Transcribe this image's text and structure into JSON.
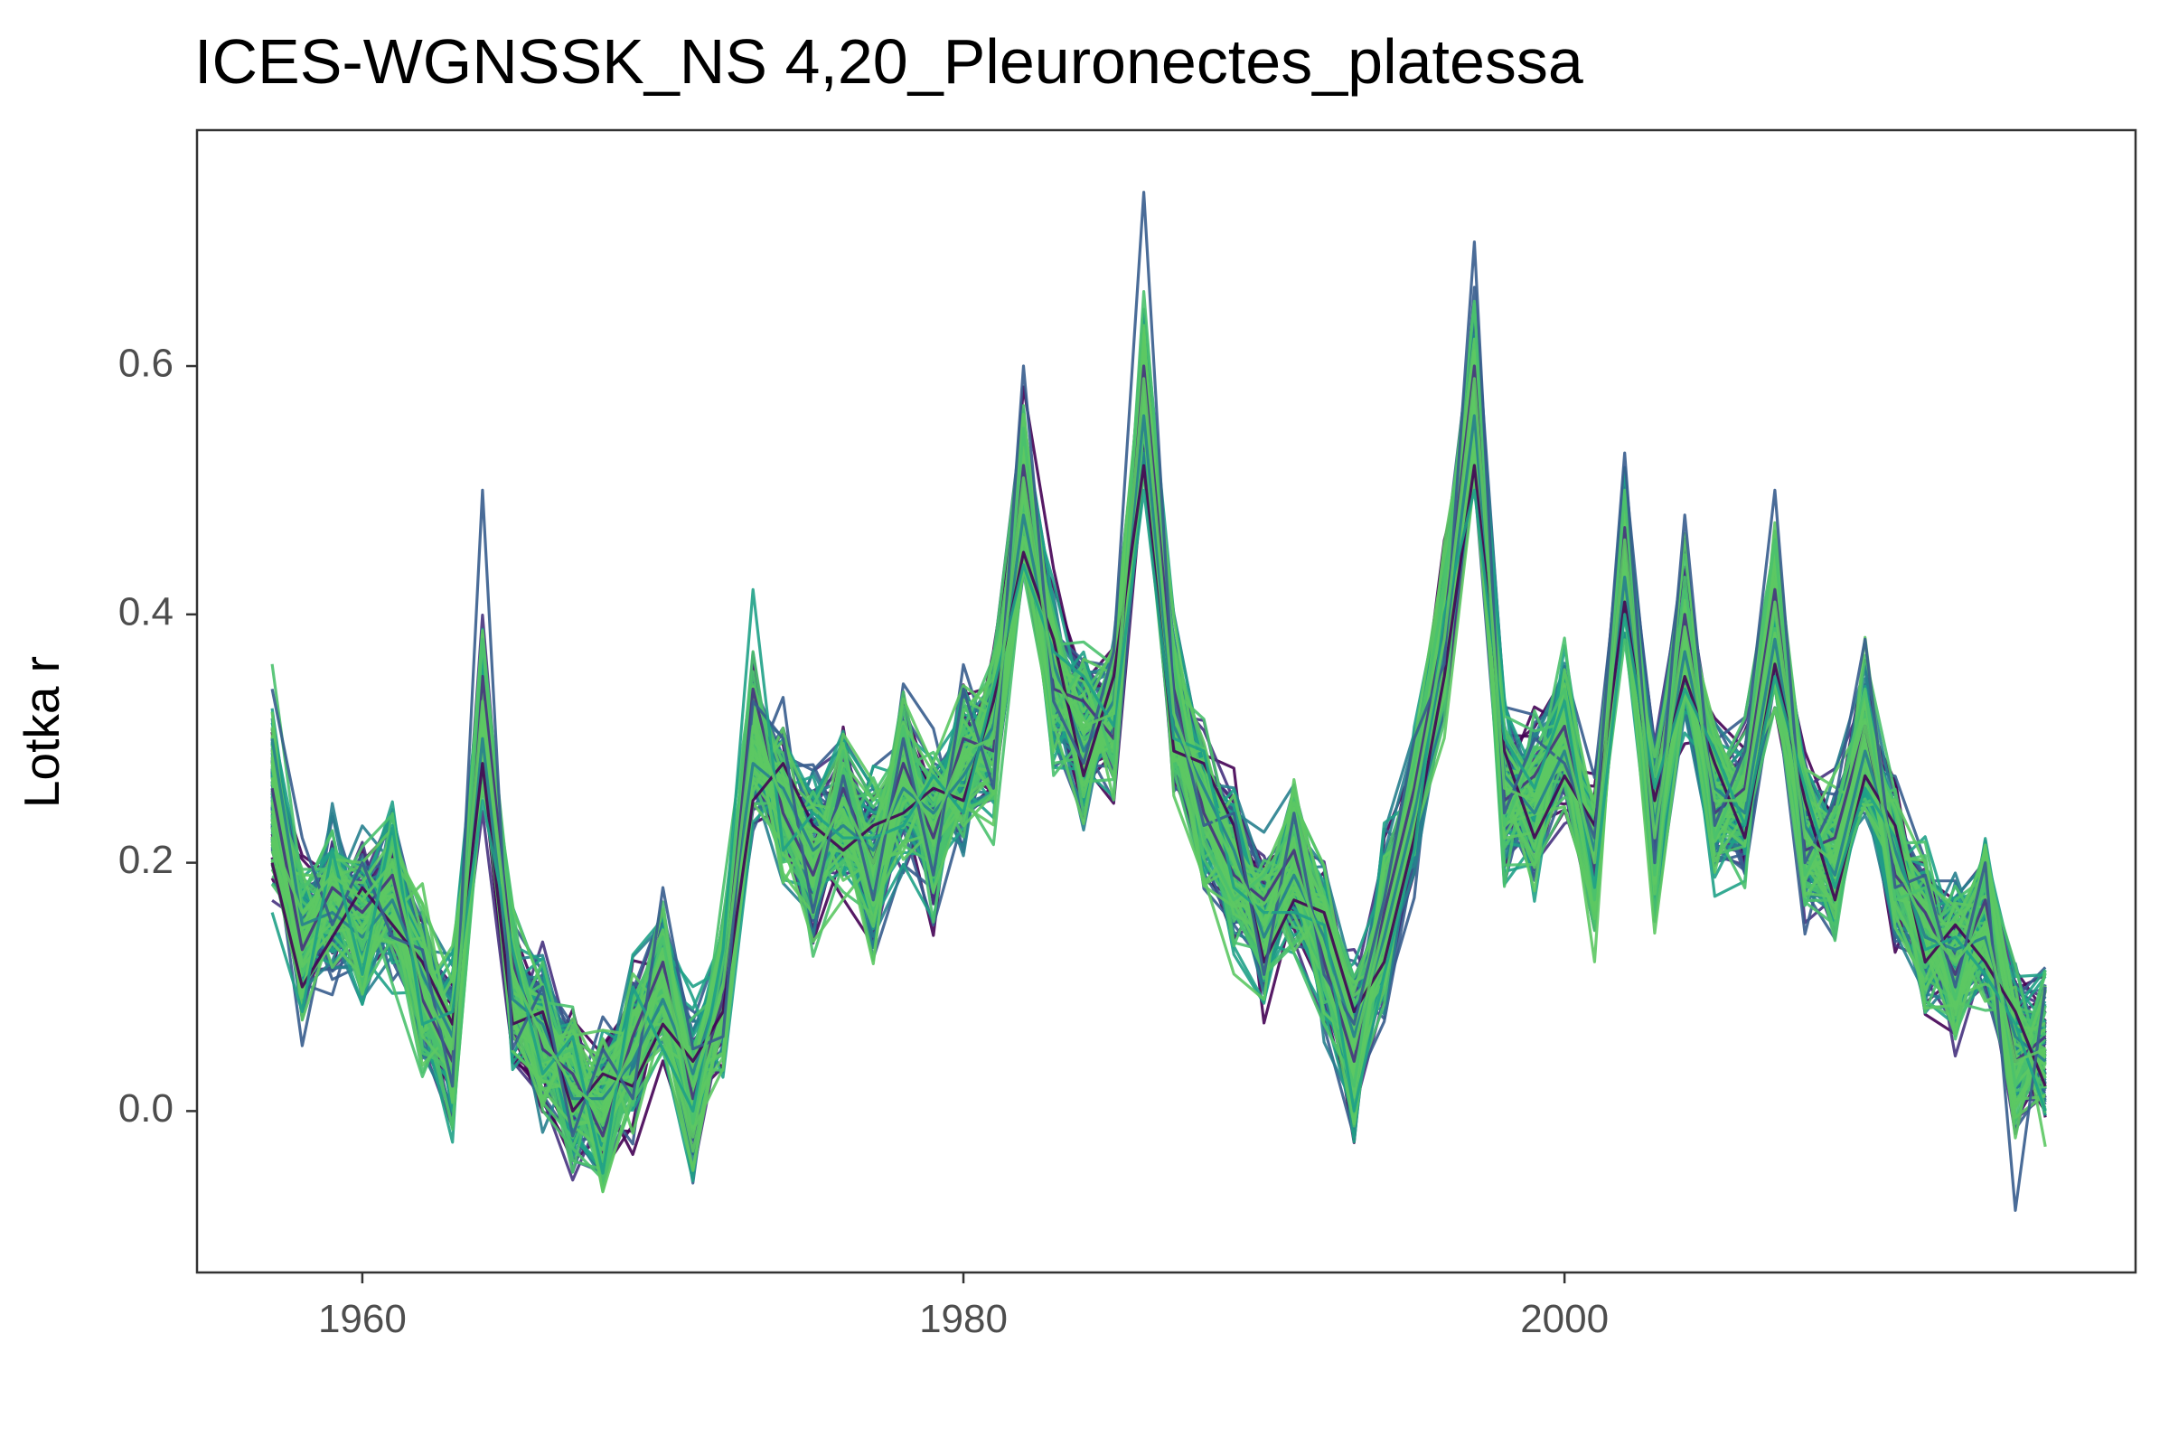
{
  "chart_data": {
    "type": "line",
    "title": "ICES-WGNSSK_NS 4,20_Pleuronectes_platessa",
    "xlabel": "",
    "ylabel": "Lotka r",
    "xlim": [
      1954.5,
      2019
    ],
    "ylim": [
      -0.13,
      0.79
    ],
    "x_ticks": [
      1960,
      1980,
      2000
    ],
    "y_ticks": [
      0.0,
      0.2,
      0.4,
      0.6
    ],
    "x_tick_labels": [
      "1960",
      "1980",
      "2000"
    ],
    "y_tick_labels": [
      "0.0",
      "0.2",
      "0.4",
      "0.6"
    ],
    "grid": false,
    "legend": "none",
    "palette": [
      "#440154",
      "#46327e",
      "#365c8d",
      "#277f8e",
      "#1fa187",
      "#4ac16d",
      "#5cc863"
    ],
    "x": [
      1957,
      1958,
      1959,
      1960,
      1961,
      1962,
      1963,
      1964,
      1965,
      1966,
      1967,
      1968,
      1969,
      1970,
      1971,
      1972,
      1973,
      1974,
      1975,
      1976,
      1977,
      1978,
      1979,
      1980,
      1981,
      1982,
      1983,
      1984,
      1985,
      1986,
      1987,
      1988,
      1989,
      1990,
      1991,
      1992,
      1993,
      1994,
      1995,
      1996,
      1997,
      1998,
      1999,
      2000,
      2001,
      2002,
      2003,
      2004,
      2005,
      2006,
      2007,
      2008,
      2009,
      2010,
      2011,
      2012,
      2013,
      2014,
      2015,
      2016
    ],
    "central": [
      0.25,
      0.14,
      0.17,
      0.15,
      0.18,
      0.1,
      0.05,
      0.32,
      0.1,
      0.06,
      0.02,
      0.0,
      0.05,
      0.1,
      0.02,
      0.1,
      0.3,
      0.25,
      0.2,
      0.24,
      0.2,
      0.27,
      0.23,
      0.28,
      0.3,
      0.5,
      0.35,
      0.3,
      0.32,
      0.58,
      0.32,
      0.25,
      0.2,
      0.15,
      0.2,
      0.13,
      0.05,
      0.15,
      0.25,
      0.38,
      0.58,
      0.26,
      0.25,
      0.3,
      0.2,
      0.45,
      0.22,
      0.38,
      0.25,
      0.25,
      0.4,
      0.22,
      0.2,
      0.3,
      0.2,
      0.15,
      0.12,
      0.15,
      0.05,
      0.05
    ],
    "series": [
      {
        "values": [
          0.26,
          0.13,
          0.18,
          0.16,
          0.19,
          0.09,
          0.04,
          0.35,
          0.12,
          0.05,
          0.03,
          -0.02,
          0.06,
          0.12,
          0.01,
          0.09,
          0.34,
          0.24,
          0.19,
          0.26,
          0.2,
          0.28,
          0.22,
          0.3,
          0.29,
          0.52,
          0.34,
          0.33,
          0.3,
          0.6,
          0.34,
          0.24,
          0.19,
          0.17,
          0.21,
          0.12,
          0.04,
          0.16,
          0.26,
          0.39,
          0.6,
          0.25,
          0.27,
          0.31,
          0.19,
          0.47,
          0.21,
          0.4,
          0.24,
          0.26,
          0.42,
          0.21,
          0.22,
          0.31,
          0.19,
          0.16,
          0.11,
          0.17,
          0.04,
          0.06
        ]
      },
      {
        "values": [
          0.3,
          0.15,
          0.16,
          0.14,
          0.17,
          0.11,
          0.06,
          0.3,
          0.09,
          0.07,
          0.01,
          0.01,
          0.04,
          0.09,
          0.03,
          0.11,
          0.28,
          0.26,
          0.21,
          0.23,
          0.21,
          0.26,
          0.24,
          0.27,
          0.31,
          0.48,
          0.36,
          0.29,
          0.33,
          0.56,
          0.31,
          0.26,
          0.21,
          0.14,
          0.19,
          0.14,
          0.06,
          0.14,
          0.24,
          0.37,
          0.56,
          0.27,
          0.24,
          0.29,
          0.21,
          0.43,
          0.23,
          0.37,
          0.26,
          0.24,
          0.38,
          0.23,
          0.19,
          0.29,
          0.21,
          0.14,
          0.13,
          0.14,
          0.06,
          0.04
        ]
      },
      {
        "values": [
          0.36,
          0.18,
          0.2,
          0.13,
          0.22,
          0.08,
          0.03,
          0.38,
          0.15,
          0.04,
          0.05,
          -0.04,
          0.09,
          0.14,
          -0.01,
          0.12,
          0.37,
          0.22,
          0.17,
          0.29,
          0.18,
          0.31,
          0.2,
          0.33,
          0.27,
          0.55,
          0.32,
          0.36,
          0.28,
          0.66,
          0.36,
          0.22,
          0.17,
          0.19,
          0.23,
          0.1,
          0.02,
          0.18,
          0.28,
          0.42,
          0.65,
          0.23,
          0.29,
          0.34,
          0.17,
          0.5,
          0.19,
          0.43,
          0.22,
          0.28,
          0.46,
          0.19,
          0.24,
          0.34,
          0.17,
          0.18,
          0.09,
          0.19,
          0.02,
          0.08
        ]
      },
      {
        "values": [
          0.2,
          0.1,
          0.14,
          0.18,
          0.15,
          0.12,
          0.07,
          0.28,
          0.07,
          0.08,
          0.0,
          0.03,
          0.02,
          0.07,
          0.04,
          0.08,
          0.25,
          0.28,
          0.23,
          0.21,
          0.23,
          0.24,
          0.26,
          0.25,
          0.33,
          0.45,
          0.38,
          0.27,
          0.35,
          0.52,
          0.29,
          0.28,
          0.23,
          0.12,
          0.17,
          0.16,
          0.08,
          0.12,
          0.22,
          0.35,
          0.52,
          0.29,
          0.22,
          0.27,
          0.23,
          0.41,
          0.25,
          0.35,
          0.28,
          0.22,
          0.36,
          0.25,
          0.17,
          0.27,
          0.23,
          0.12,
          0.15,
          0.12,
          0.08,
          0.02
        ]
      },
      {
        "values": [
          0.34,
          0.22,
          0.15,
          0.2,
          0.14,
          0.13,
          0.02,
          0.5,
          0.05,
          0.1,
          -0.02,
          0.05,
          0.01,
          0.18,
          0.05,
          0.06,
          0.33,
          0.3,
          0.16,
          0.27,
          0.17,
          0.3,
          0.19,
          0.34,
          0.26,
          0.6,
          0.33,
          0.28,
          0.37,
          0.74,
          0.33,
          0.23,
          0.24,
          0.11,
          0.24,
          0.11,
          0.07,
          0.17,
          0.3,
          0.36,
          0.7,
          0.24,
          0.3,
          0.28,
          0.22,
          0.53,
          0.2,
          0.48,
          0.23,
          0.29,
          0.5,
          0.2,
          0.25,
          0.38,
          0.18,
          0.19,
          0.1,
          0.2,
          -0.08,
          0.1
        ]
      },
      {
        "values": [
          0.16,
          0.08,
          0.21,
          0.11,
          0.23,
          0.07,
          0.08,
          0.25,
          0.13,
          0.03,
          0.06,
          -0.05,
          0.1,
          0.05,
          0.0,
          0.13,
          0.42,
          0.21,
          0.24,
          0.22,
          0.22,
          0.23,
          0.27,
          0.24,
          0.34,
          0.44,
          0.37,
          0.35,
          0.31,
          0.5,
          0.3,
          0.29,
          0.18,
          0.16,
          0.16,
          0.15,
          0.0,
          0.11,
          0.21,
          0.4,
          0.5,
          0.3,
          0.26,
          0.33,
          0.18,
          0.4,
          0.26,
          0.34,
          0.29,
          0.23,
          0.35,
          0.26,
          0.18,
          0.26,
          0.22,
          0.13,
          0.14,
          0.11,
          0.07,
          0.0
        ]
      },
      {
        "values": [
          0.22,
          0.16,
          0.19,
          0.17,
          0.2,
          0.1,
          0.05,
          0.33,
          0.11,
          0.06,
          0.02,
          0.0,
          0.05,
          0.11,
          0.02,
          0.1,
          0.31,
          0.25,
          0.2,
          0.25,
          0.2,
          0.27,
          0.23,
          0.29,
          0.3,
          0.51,
          0.35,
          0.31,
          0.32,
          0.59,
          0.32,
          0.25,
          0.2,
          0.15,
          0.2,
          0.13,
          0.05,
          0.15,
          0.25,
          0.38,
          0.59,
          0.26,
          0.25,
          0.3,
          0.2,
          0.46,
          0.22,
          0.39,
          0.25,
          0.25,
          0.41,
          0.22,
          0.2,
          0.31,
          0.2,
          0.15,
          0.12,
          0.15,
          0.04,
          0.05
        ]
      }
    ]
  }
}
